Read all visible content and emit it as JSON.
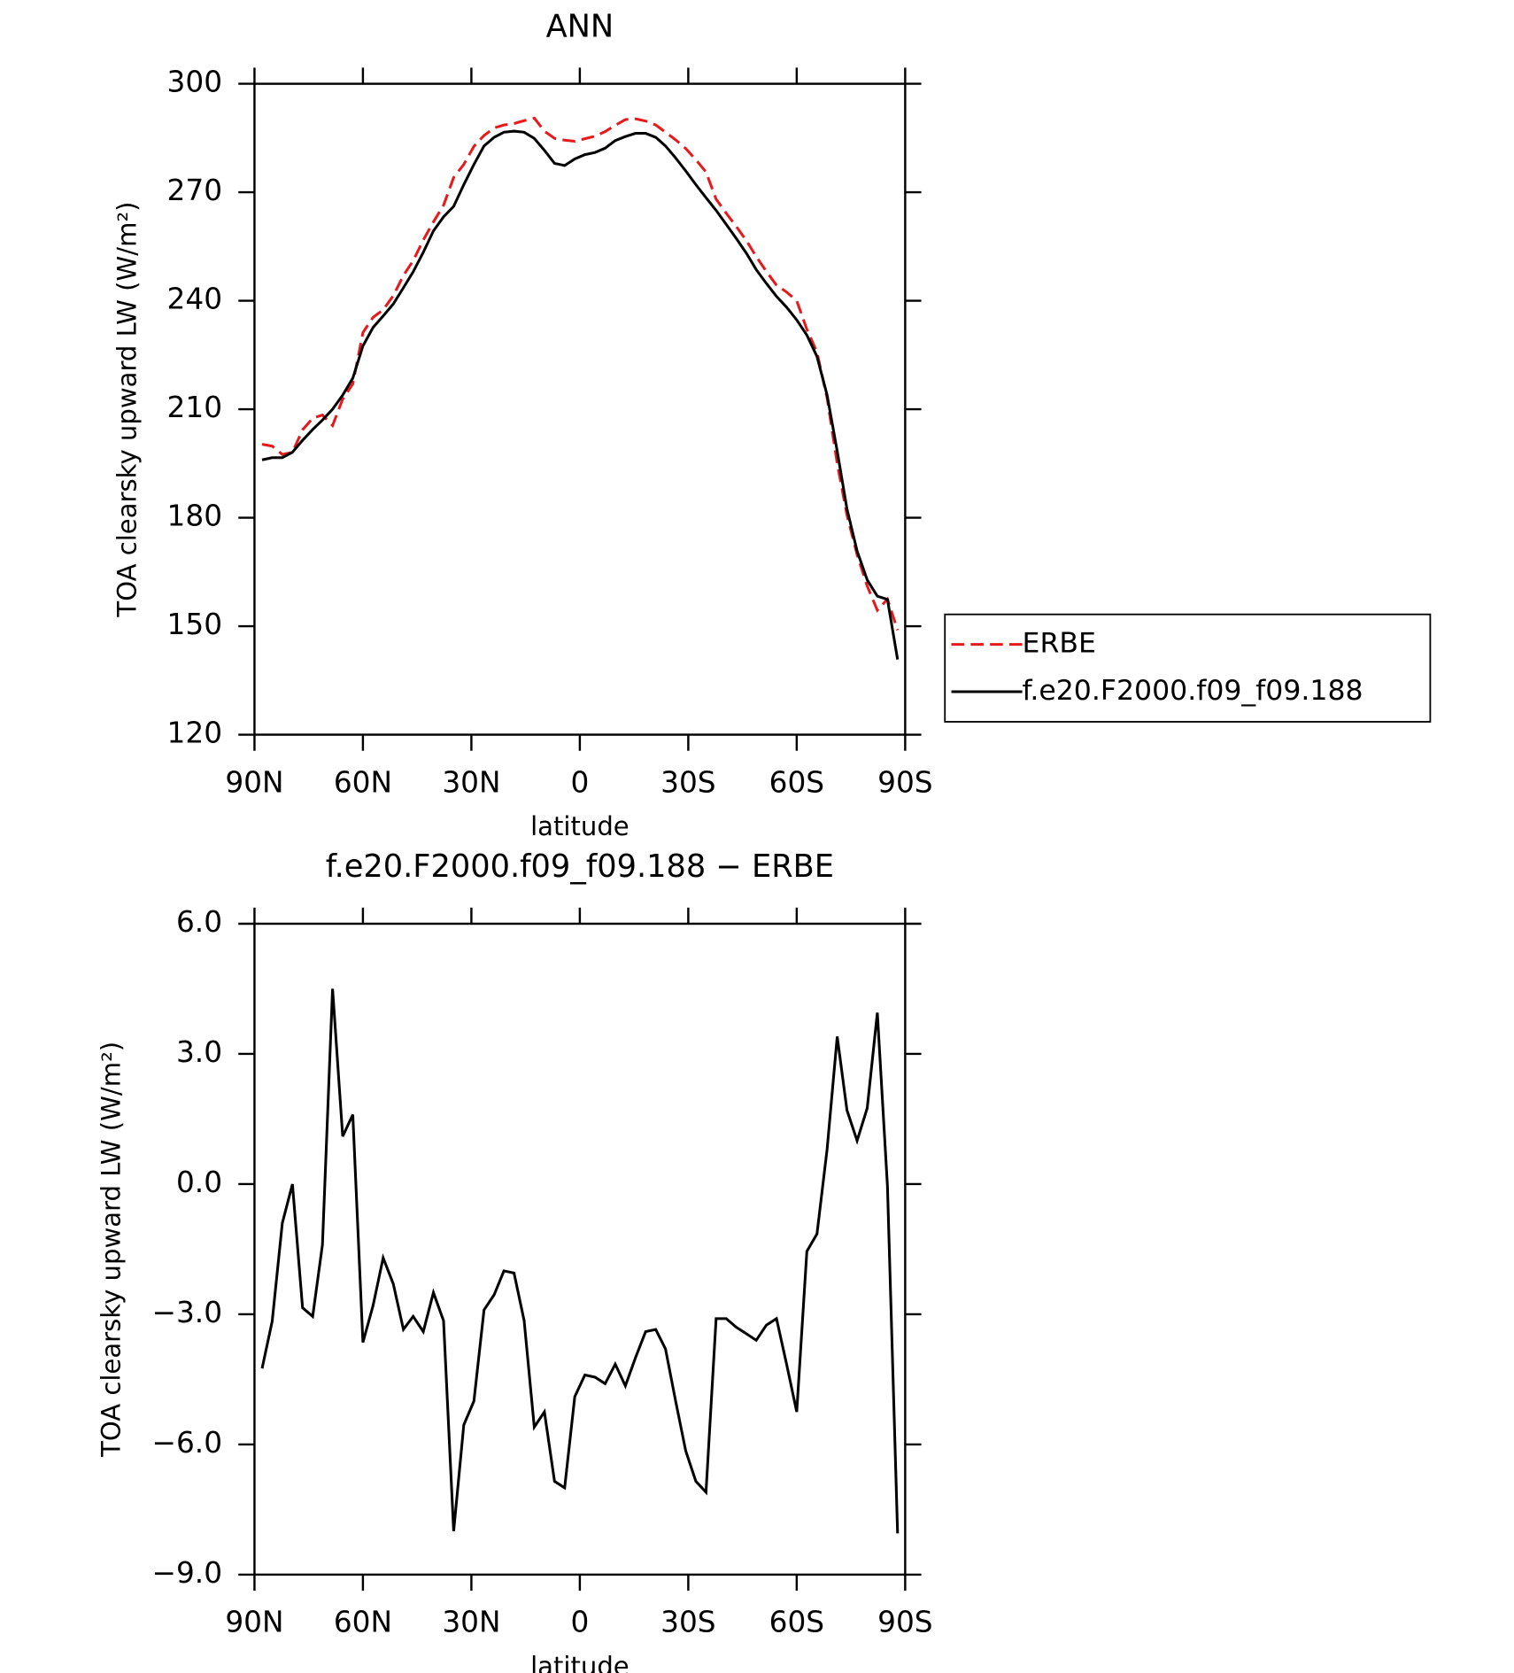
{
  "chart_data": [
    {
      "type": "line",
      "title": "ANN",
      "ylabel": "TOA clearsky upward LW (W/m²)",
      "xlabel": "latitude",
      "x": [
        87.9,
        85.1,
        82.3,
        79.5,
        76.7,
        73.9,
        71.2,
        68.4,
        65.6,
        62.8,
        60.0,
        57.2,
        54.4,
        51.6,
        48.8,
        46.1,
        43.3,
        40.5,
        37.7,
        34.9,
        32.1,
        29.3,
        26.5,
        23.7,
        21.0,
        18.2,
        15.4,
        12.6,
        9.8,
        7.0,
        4.2,
        1.4,
        -1.4,
        -4.2,
        -7.0,
        -9.8,
        -12.6,
        -15.4,
        -18.2,
        -21.0,
        -23.7,
        -26.5,
        -29.3,
        -32.1,
        -34.9,
        -37.7,
        -40.5,
        -43.3,
        -46.1,
        -48.8,
        -51.6,
        -54.4,
        -57.2,
        -60.0,
        -62.8,
        -65.6,
        -68.4,
        -71.2,
        -73.9,
        -76.7,
        -79.5,
        -82.3,
        -85.1,
        -87.9
      ],
      "series": [
        {
          "name": "ERBE",
          "color": "#e8191b",
          "linestyle": "dashed",
          "values": [
            200.3,
            199.8,
            197.5,
            198.1,
            204.3,
            207.5,
            208.4,
            205.5,
            212.8,
            217.0,
            231.2,
            235.4,
            237.5,
            241.4,
            247.0,
            251.1,
            256.8,
            261.8,
            266.4,
            274.1,
            277.7,
            282.7,
            285.7,
            287.8,
            288.6,
            289.0,
            289.8,
            290.5,
            286.9,
            284.9,
            284.4,
            284.1,
            284.8,
            285.5,
            286.8,
            288.5,
            290.1,
            290.3,
            289.7,
            288.6,
            286.6,
            284.5,
            282.1,
            279.0,
            275.6,
            268.1,
            264.2,
            260.5,
            256.6,
            252.2,
            248.1,
            244.3,
            242.4,
            240.0,
            232.1,
            225.8,
            213.1,
            195.0,
            180.7,
            169.8,
            161.1,
            154.4,
            157.5,
            148.9
          ]
        },
        {
          "name": "f.e20.F2000.f09_f09.188",
          "color": "#000000",
          "linestyle": "solid",
          "values": [
            196.0,
            196.6,
            196.6,
            198.1,
            201.4,
            204.4,
            207.0,
            210.0,
            213.9,
            218.6,
            227.5,
            232.6,
            235.8,
            239.1,
            243.6,
            248.0,
            253.4,
            259.3,
            263.2,
            266.1,
            272.1,
            277.7,
            282.8,
            285.2,
            286.6,
            286.9,
            286.6,
            284.9,
            281.6,
            278.0,
            277.4,
            279.2,
            280.4,
            281.0,
            282.2,
            284.3,
            285.4,
            286.3,
            286.3,
            285.2,
            282.8,
            279.5,
            275.9,
            272.1,
            268.5,
            265.0,
            261.1,
            257.2,
            253.1,
            248.6,
            244.8,
            241.2,
            238.2,
            234.7,
            230.5,
            224.6,
            213.9,
            198.4,
            182.4,
            170.8,
            162.8,
            158.3,
            157.4,
            140.8
          ]
        }
      ],
      "xlim": [
        90,
        -90
      ],
      "xticks": [
        {
          "value": 90,
          "label": "90N"
        },
        {
          "value": 60,
          "label": "60N"
        },
        {
          "value": 30,
          "label": "30N"
        },
        0,
        {
          "value": -30,
          "label": "30S"
        },
        {
          "value": -60,
          "label": "60S"
        },
        {
          "value": -90,
          "label": "90S"
        }
      ],
      "ylim": [
        120,
        300
      ],
      "yticks": [
        120,
        150,
        180,
        210,
        240,
        270,
        300
      ],
      "legend": "right"
    },
    {
      "type": "line",
      "title": "f.e20.F2000.f09_f09.188 − ERBE",
      "ylabel": "TOA clearsky upward LW (W/m²)",
      "xlabel": "latitude",
      "x": [
        87.9,
        85.1,
        82.3,
        79.5,
        76.7,
        73.9,
        71.2,
        68.4,
        65.6,
        62.8,
        60.0,
        57.2,
        54.4,
        51.6,
        48.8,
        46.1,
        43.3,
        40.5,
        37.7,
        34.9,
        32.1,
        29.3,
        26.5,
        23.7,
        21.0,
        18.2,
        15.4,
        12.6,
        9.8,
        7.0,
        4.2,
        1.4,
        -1.4,
        -4.2,
        -7.0,
        -9.8,
        -12.6,
        -15.4,
        -18.2,
        -21.0,
        -23.7,
        -26.5,
        -29.3,
        -32.1,
        -34.9,
        -37.7,
        -40.5,
        -43.3,
        -46.1,
        -48.8,
        -51.6,
        -54.4,
        -57.2,
        -60.0,
        -62.8,
        -65.6,
        -68.4,
        -71.2,
        -73.9,
        -76.7,
        -79.5,
        -82.3,
        -85.1,
        -87.9
      ],
      "color": "#000000",
      "values": [
        -4.25,
        -3.16,
        -0.9,
        0.0,
        -2.85,
        -3.05,
        -1.4,
        4.5,
        1.1,
        1.6,
        -3.65,
        -2.8,
        -1.7,
        -2.3,
        -3.35,
        -3.05,
        -3.4,
        -2.5,
        -3.15,
        -8.0,
        -5.55,
        -5.0,
        -2.9,
        -2.55,
        -2.0,
        -2.05,
        -3.15,
        -5.6,
        -5.25,
        -6.85,
        -7.0,
        -4.9,
        -4.4,
        -4.45,
        -4.6,
        -4.15,
        -4.65,
        -4.0,
        -3.4,
        -3.35,
        -3.8,
        -5.0,
        -6.15,
        -6.85,
        -7.1,
        -3.1,
        -3.1,
        -3.3,
        -3.45,
        -3.6,
        -3.25,
        -3.1,
        -4.15,
        -5.25,
        -1.55,
        -1.15,
        0.8,
        3.4,
        1.7,
        1.0,
        1.75,
        3.95,
        -0.05,
        -8.05
      ],
      "xlim": [
        90,
        -90
      ],
      "xticks": [
        {
          "value": 90,
          "label": "90N"
        },
        {
          "value": 60,
          "label": "60N"
        },
        {
          "value": 30,
          "label": "30N"
        },
        0,
        {
          "value": -30,
          "label": "30S"
        },
        {
          "value": -60,
          "label": "60S"
        },
        {
          "value": -90,
          "label": "90S"
        }
      ],
      "ylim": [
        -9,
        6
      ],
      "yticks": [
        {
          "value": -9,
          "label": "−9.0"
        },
        {
          "value": -6,
          "label": "−6.0"
        },
        {
          "value": -3,
          "label": "−3.0"
        },
        {
          "value": 0,
          "label": "0.0"
        },
        {
          "value": 3,
          "label": "3.0"
        },
        {
          "value": 6,
          "label": "6.0"
        }
      ]
    }
  ]
}
